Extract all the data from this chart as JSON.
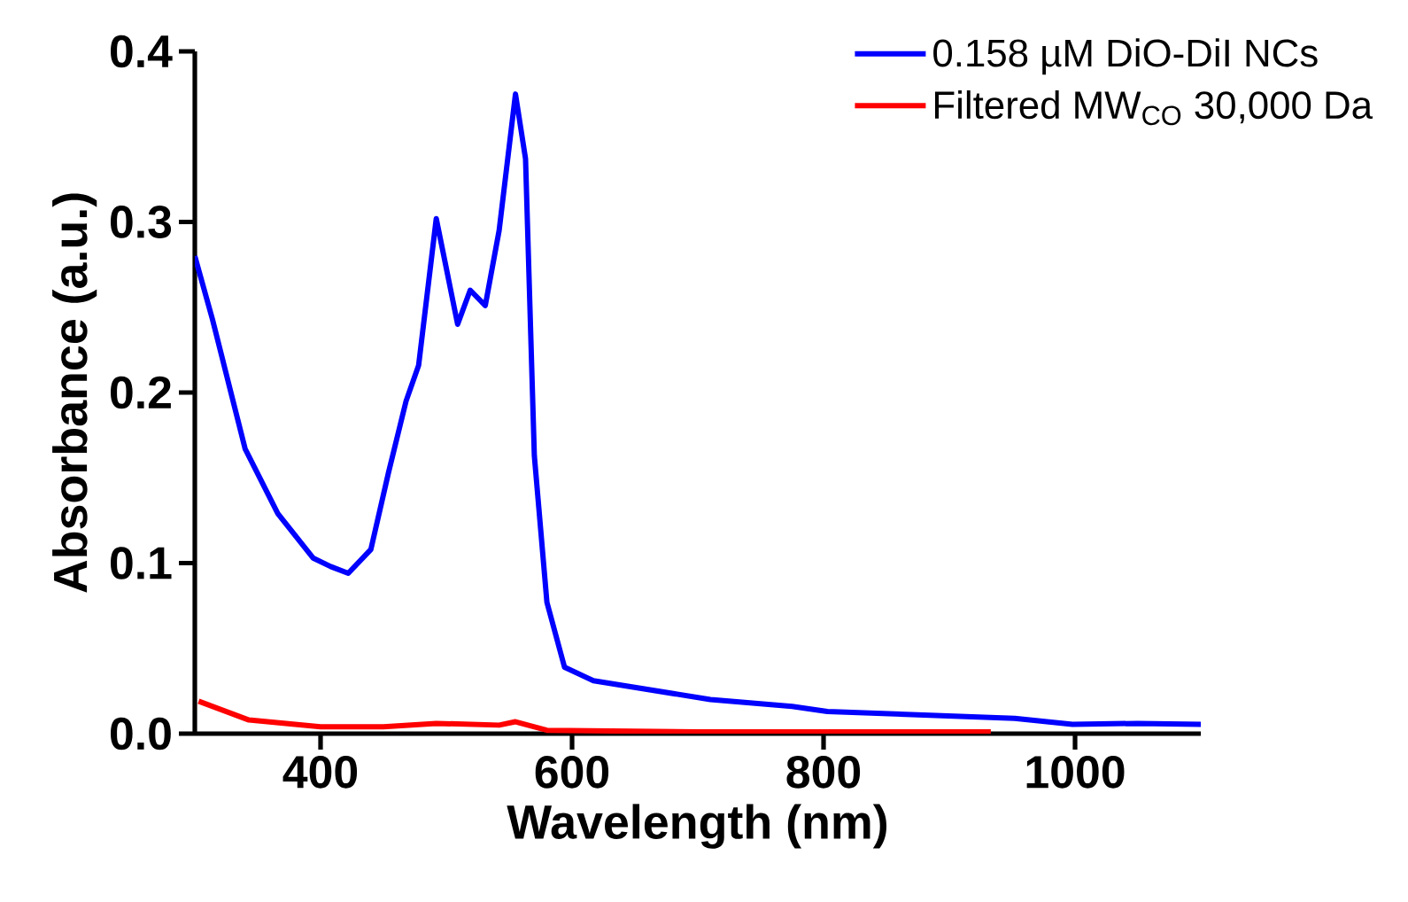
{
  "chart_data": {
    "type": "line",
    "xlabel": "Wavelength (nm)",
    "ylabel": "Absorbance (a.u.)",
    "xlim": [
      300,
      1100
    ],
    "xticks": [
      400,
      600,
      800,
      1000
    ],
    "ylim": [
      0,
      0.4
    ],
    "yticks": [
      {
        "value": 0,
        "label": "0.0"
      },
      0.1,
      0.2,
      0.3,
      0.4
    ],
    "grid": false,
    "legend": "top right",
    "marker": "none",
    "line_style": "solid",
    "series": [
      {
        "name": "0.158 µM DiO-DiI NCs",
        "color": "#0000ff",
        "x": [
          300,
          314,
          340,
          366,
          394,
          408,
          422,
          440,
          454,
          468,
          478,
          492,
          509,
          519,
          531,
          542,
          555,
          563,
          570,
          580,
          594,
          617,
          710,
          775,
          803,
          952,
          998,
          1050,
          1100
        ],
        "values": [
          0.28,
          0.243,
          0.167,
          0.129,
          0.103,
          0.098,
          0.094,
          0.108,
          0.153,
          0.195,
          0.216,
          0.302,
          0.24,
          0.26,
          0.251,
          0.295,
          0.375,
          0.337,
          0.163,
          0.077,
          0.039,
          0.031,
          0.02,
          0.016,
          0.013,
          0.009,
          0.0055,
          0.006,
          0.0055
        ]
      },
      {
        "name": "Filtered MW$_{CO}$ 30,000 Da",
        "color": "#ff0000",
        "x": [
          303,
          343,
          400,
          450,
          492,
          542,
          555,
          580,
          700,
          933
        ],
        "values": [
          0.019,
          0.008,
          0.004,
          0.004,
          0.006,
          0.005,
          0.007,
          0.002,
          0.001,
          0.001
        ]
      }
    ]
  }
}
